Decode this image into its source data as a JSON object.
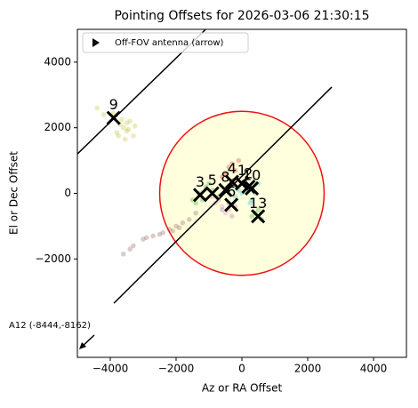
{
  "chart_data": {
    "type": "scatter",
    "title": "Pointing Offsets for 2026-03-06 21:30:15",
    "x_label": "Az or RA Offset",
    "y_label": "El or Dec Offset",
    "xlim": [
      -5000,
      5000
    ],
    "ylim": [
      -5000,
      5000
    ],
    "xticks": [
      {
        "value": -4000,
        "label": "−4000"
      },
      {
        "value": -2000,
        "label": "−2000"
      },
      0,
      2000,
      4000
    ],
    "yticks": [
      {
        "value": -2000,
        "label": "−2000"
      },
      0,
      2000,
      4000
    ],
    "legend": {
      "label": "Off-FOV antenna (arrow)",
      "location": "upper left"
    },
    "annotation": "A12 (-8444,-8162)",
    "circle": {
      "center": [
        0,
        0
      ],
      "radius": 2500,
      "color": "#ee1111",
      "fill": "#ffffdd"
    },
    "lines": [
      {
        "x": [
          -5000,
          -1100
        ],
        "y": [
          1200,
          5000
        ]
      },
      {
        "x": [
          -3890,
          2730
        ],
        "y": [
          -3350,
          3240
        ]
      }
    ],
    "series": [
      {
        "color": "#bcbd22",
        "x": [
          -3700,
          -3500,
          -3600,
          -3400,
          -3800,
          -3300,
          -3550,
          -3650,
          -3450,
          -4200,
          -4400,
          -3900,
          -3250,
          -3750,
          -3500
        ],
        "y": [
          2100,
          1900,
          2000,
          2200,
          1850,
          1750,
          1650,
          2250,
          1950,
          2400,
          2600,
          2450,
          2050,
          1750,
          2150
        ]
      },
      {
        "color": "#8c564b",
        "x": [
          -3600,
          -3300,
          -3000,
          -2700,
          -2400,
          -2200,
          -2000,
          -1800,
          -1600,
          -1400,
          -2500,
          -2900,
          -3400,
          -1900,
          -2100
        ],
        "y": [
          -1850,
          -1600,
          -1400,
          -1300,
          -1200,
          -1100,
          -1000,
          -900,
          -800,
          -600,
          -1250,
          -1350,
          -1700,
          -1050,
          -1150
        ]
      },
      {
        "color": "#2ca02c",
        "x": [
          -1300,
          -1100,
          -1400,
          -900,
          -1200,
          -1000,
          -700,
          400,
          600,
          500,
          300,
          -1500
        ],
        "y": [
          0,
          200,
          -300,
          100,
          -200,
          300,
          -100,
          -600,
          -800,
          -500,
          -700,
          -200
        ]
      },
      {
        "color": "#e377c2",
        "x": [
          -800,
          -600,
          -700,
          -400,
          -900,
          -500
        ],
        "y": [
          -300,
          -400,
          -200,
          -500,
          -100,
          -600
        ]
      },
      {
        "color": "#17becf",
        "x": [
          0,
          200,
          -200,
          100,
          300,
          -100,
          400,
          500,
          250,
          -300
        ],
        "y": [
          0,
          200,
          -100,
          300,
          -200,
          100,
          0,
          300,
          -300,
          200
        ]
      },
      {
        "color": "#d62728",
        "x": [
          -400,
          -200,
          -300,
          -500,
          -100,
          -600,
          -250
        ],
        "y": [
          800,
          700,
          900,
          600,
          1000,
          500,
          400
        ]
      },
      {
        "color": "#9467bd",
        "x": [
          -600,
          -400,
          -300,
          -200
        ],
        "y": [
          -500,
          -300,
          -700,
          -400
        ]
      }
    ],
    "markers": [
      {
        "label": "9",
        "x": -3900,
        "y": 2300
      },
      {
        "label": "3",
        "x": -1270,
        "y": -50
      },
      {
        "label": "5",
        "x": -900,
        "y": 0
      },
      {
        "label": "8",
        "x": -500,
        "y": 100
      },
      {
        "label": "4",
        "x": -300,
        "y": 350
      },
      {
        "label": "1",
        "x": 0,
        "y": 300
      },
      {
        "label": "2",
        "x": 200,
        "y": 200
      },
      {
        "label": "10",
        "x": 300,
        "y": 150
      },
      {
        "label": "13",
        "x": 490,
        "y": -700
      },
      {
        "label": "6",
        "x": -320,
        "y": -350
      }
    ]
  }
}
